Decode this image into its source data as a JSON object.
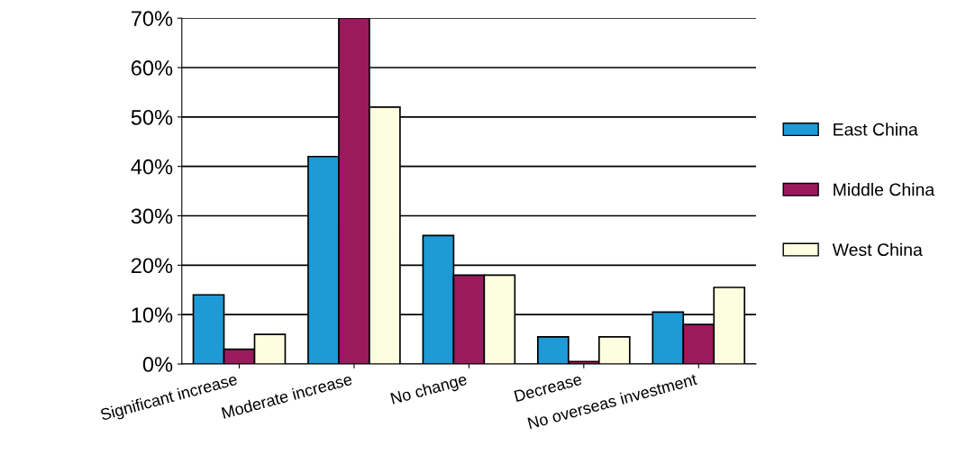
{
  "chart_data": {
    "type": "bar",
    "categories": [
      "Significant increase",
      "Moderate increase",
      "No change",
      "Decrease",
      "No overseas investment"
    ],
    "series": [
      {
        "name": "East China",
        "color": "#1e9ad6",
        "values": [
          14,
          42,
          26,
          5.5,
          10.5
        ]
      },
      {
        "name": "Middle China",
        "color": "#9b1a5e",
        "values": [
          3,
          70,
          18,
          0.5,
          8
        ]
      },
      {
        "name": "West China",
        "color": "#fdfde0",
        "values": [
          6,
          52,
          18,
          5.5,
          15.5
        ]
      }
    ],
    "ylim": [
      0,
      70
    ],
    "yticks": [
      {
        "value": 0,
        "label": "0%"
      },
      {
        "value": 10,
        "label": "10%"
      },
      {
        "value": 20,
        "label": "20%"
      },
      {
        "value": 30,
        "label": "30%"
      },
      {
        "value": 40,
        "label": "40%"
      },
      {
        "value": 50,
        "label": "50%"
      },
      {
        "value": 60,
        "label": "60%"
      },
      {
        "value": 70,
        "label": "70%"
      }
    ],
    "grid": "y",
    "legend": "right"
  }
}
